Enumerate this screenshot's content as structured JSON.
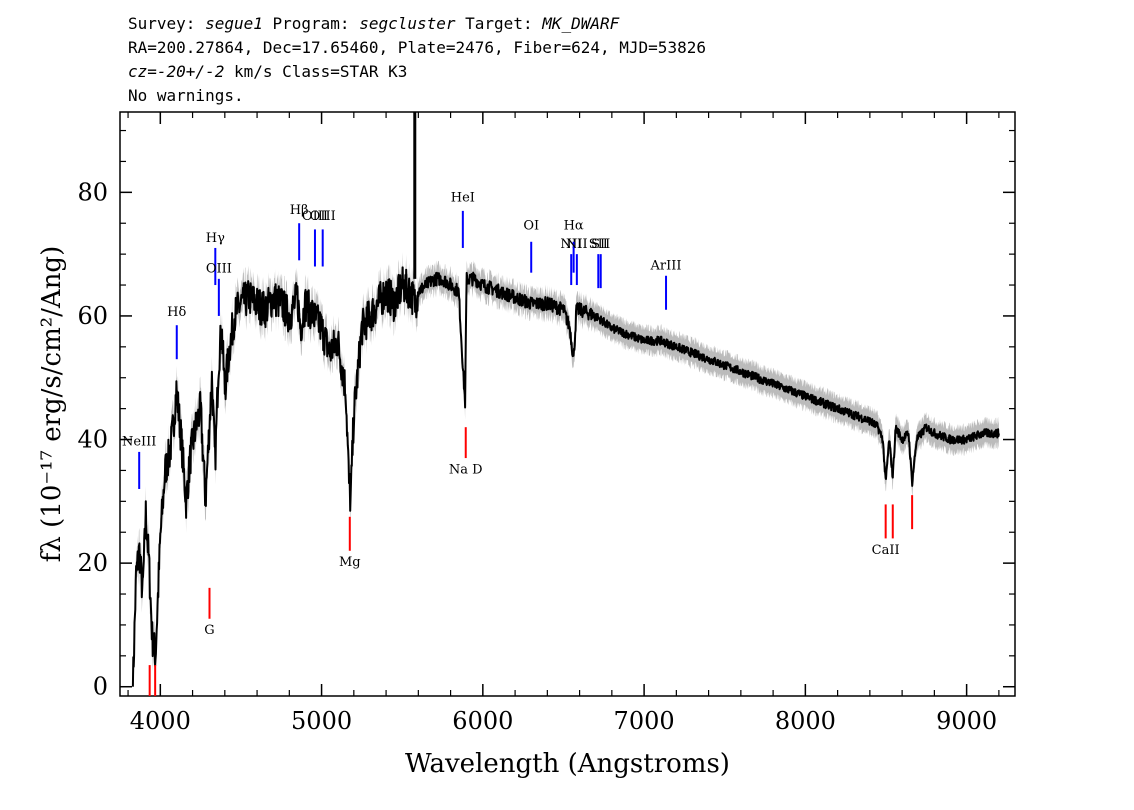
{
  "header": {
    "survey_label": "Survey: ",
    "survey": "segue1",
    "program_label": " Program: ",
    "program": "segcluster",
    "target_label": " Target: ",
    "target": "MK_DWARF",
    "line2": "RA=200.27864, Dec=17.65460, Plate=2476, Fiber=624, MJD=53826",
    "line3_cz": "cz=-20+/-2",
    "line3_rest": " km/s Class=STAR K3",
    "line4": "No warnings."
  },
  "chart_data": {
    "type": "line",
    "xlabel": "Wavelength (Angstroms)",
    "ylabel": "fλ (10⁻¹⁷ erg/s/cm²/Ang)",
    "xlim": [
      3750,
      9300
    ],
    "ylim": [
      -1.5,
      93
    ],
    "x_ticks": [
      4000,
      5000,
      6000,
      7000,
      8000,
      9000
    ],
    "y_ticks": [
      0,
      20,
      40,
      60,
      80
    ],
    "colors": {
      "flux": "#000000",
      "error": "#bbbbbb",
      "emission": "#0000ff",
      "absorption": "#ff0000"
    },
    "series": [
      {
        "x": [
          3830,
          3850,
          3870,
          3890,
          3910,
          3930,
          3950,
          3970,
          4000,
          4030,
          4060,
          4080,
          4100,
          4130,
          4160,
          4190,
          4220,
          4250,
          4280,
          4300,
          4320,
          4340,
          4360,
          4380,
          4400,
          4430,
          4460,
          4500,
          4550,
          4600,
          4650,
          4700,
          4750,
          4800,
          4850,
          4870,
          4900,
          4950,
          5000,
          5050,
          5100,
          5150,
          5170,
          5180,
          5200,
          5250,
          5300,
          5350,
          5400,
          5450,
          5500,
          5550,
          5580,
          5600,
          5650,
          5700,
          5750,
          5800,
          5850,
          5880,
          5890,
          5893,
          5896,
          5900,
          5950,
          6000,
          6100,
          6200,
          6300,
          6400,
          6500,
          6540,
          6563,
          6580,
          6600,
          6700,
          6800,
          6900,
          7000,
          7100,
          7200,
          7300,
          7400,
          7500,
          7600,
          7700,
          7800,
          7900,
          8000,
          8100,
          8200,
          8300,
          8400,
          8450,
          8480,
          8498,
          8520,
          8542,
          8560,
          8600,
          8640,
          8662,
          8690,
          8750,
          8800,
          8900,
          9000,
          9100,
          9200
        ],
        "y": [
          0,
          18,
          22,
          15,
          28,
          20,
          8,
          5,
          24,
          35,
          38,
          42,
          48,
          40,
          30,
          38,
          42,
          45,
          30,
          40,
          50,
          36,
          52,
          58,
          48,
          55,
          60,
          62,
          63,
          62,
          61,
          63,
          62,
          60,
          63,
          58,
          62,
          60,
          58,
          54,
          56,
          48,
          33,
          30,
          44,
          58,
          60,
          62,
          64,
          62,
          65,
          64,
          62,
          64,
          65,
          66,
          66,
          65,
          64,
          50,
          46,
          52,
          60,
          66,
          66,
          65,
          64,
          63,
          62,
          62,
          61,
          58,
          53,
          61,
          61,
          60,
          58,
          57,
          56,
          56,
          55,
          54,
          53,
          52,
          51,
          50,
          49,
          48,
          47,
          46,
          45,
          44,
          43,
          42,
          40,
          33,
          40,
          34,
          42,
          40,
          41,
          33,
          40,
          42,
          41,
          40,
          40,
          41,
          41
        ]
      }
    ],
    "lines": [
      {
        "label": "NeIII",
        "wavelength": 3869,
        "kind": "emission",
        "line_top": 38,
        "line_bottom": 32,
        "label_y": 39
      },
      {
        "label": "Hδ",
        "wavelength": 4102,
        "kind": "emission",
        "line_top": 58.5,
        "line_bottom": 53,
        "label_y": 60
      },
      {
        "label": "Hγ",
        "wavelength": 4341,
        "kind": "emission",
        "line_top": 71,
        "line_bottom": 65,
        "label_y": 72
      },
      {
        "label": "OIII",
        "wavelength": 4363,
        "kind": "emission",
        "line_top": 66,
        "line_bottom": 60,
        "label_y": 67
      },
      {
        "label": "Hβ",
        "wavelength": 4861,
        "kind": "emission",
        "line_top": 75,
        "line_bottom": 69,
        "label_y": 76.5
      },
      {
        "label": "OIII",
        "wavelength": 4959,
        "kind": "emission",
        "line_top": 74,
        "line_bottom": 68,
        "label_y": 75.5
      },
      {
        "label": "OIII",
        "wavelength": 5007,
        "kind": "emission",
        "line_top": 74,
        "line_bottom": 68,
        "label_y": 75.5
      },
      {
        "label": "HeI",
        "wavelength": 5876,
        "kind": "emission",
        "line_top": 77,
        "line_bottom": 71,
        "label_y": 78.5
      },
      {
        "label": "OI",
        "wavelength": 6300,
        "kind": "emission",
        "line_top": 72,
        "line_bottom": 67,
        "label_y": 74
      },
      {
        "label": "NII",
        "wavelength": 6548,
        "kind": "emission",
        "line_top": 70,
        "line_bottom": 65,
        "label_y": 71
      },
      {
        "label": "Hα",
        "wavelength": 6563,
        "kind": "emission",
        "line_top": 72,
        "line_bottom": 67,
        "label_y": 74
      },
      {
        "label": "NII",
        "wavelength": 6583,
        "kind": "emission",
        "line_top": 70,
        "line_bottom": 65,
        "label_y": 71
      },
      {
        "label": "SII",
        "wavelength": 6716,
        "kind": "emission",
        "line_top": 70,
        "line_bottom": 64.5,
        "label_y": 71
      },
      {
        "label": "SII",
        "wavelength": 6731,
        "kind": "emission",
        "line_top": 70,
        "line_bottom": 64.5,
        "label_y": 71
      },
      {
        "label": "ArIII",
        "wavelength": 7136,
        "kind": "emission",
        "line_top": 66.5,
        "line_bottom": 61,
        "label_y": 67.5
      },
      {
        "label": "",
        "wavelength": 3934,
        "kind": "absorption",
        "line_top": 3.5,
        "line_bottom": -1.5,
        "label_y": null
      },
      {
        "label": "",
        "wavelength": 3968,
        "kind": "absorption",
        "line_top": 3.5,
        "line_bottom": -1.5,
        "label_y": null
      },
      {
        "label": "G",
        "wavelength": 4305,
        "kind": "absorption",
        "line_top": 16,
        "line_bottom": 11,
        "label_y": 8.5
      },
      {
        "label": "Mg",
        "wavelength": 5175,
        "kind": "absorption",
        "line_top": 27.5,
        "line_bottom": 22,
        "label_y": 19.5
      },
      {
        "label": "Na D",
        "wavelength": 5894,
        "kind": "absorption",
        "line_top": 42,
        "line_bottom": 37,
        "label_y": 34.5
      },
      {
        "label": "CaII",
        "wavelength": 8498,
        "kind": "absorption",
        "line_top": 29.5,
        "line_bottom": 24,
        "label_y": 21.5
      },
      {
        "label": "",
        "wavelength": 8542,
        "kind": "absorption",
        "line_top": 29.5,
        "line_bottom": 24,
        "label_y": null
      },
      {
        "label": "",
        "wavelength": 8662,
        "kind": "absorption",
        "line_top": 31,
        "line_bottom": 25.5,
        "label_y": null
      }
    ],
    "spikes": [
      {
        "wavelength": 5578,
        "y_from": 66,
        "y_to": 93
      }
    ]
  }
}
